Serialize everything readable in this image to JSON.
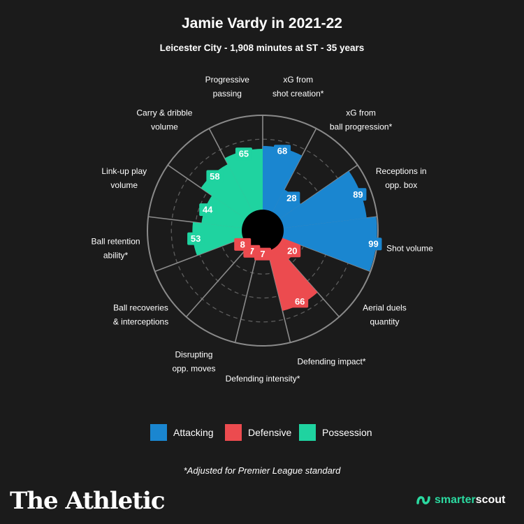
{
  "chart_data": {
    "type": "polar-bar",
    "title": "Jamie Vardy in 2021-22",
    "subtitle": "Leicester City - 1,908 minutes at ST - 35 years",
    "rlim": [
      0,
      100
    ],
    "categories": [
      "xG from shot creation*",
      "xG from ball progression*",
      "Receptions in opp. box",
      "Shot volume",
      "Aerial duels quantity",
      "Defending impact*",
      "Defending intensity*",
      "Disrupting opp. moves",
      "Ball recoveries & interceptions",
      "Ball retention ability*",
      "Link-up play volume",
      "Carry & dribble volume",
      "Progressive passing"
    ],
    "label_lines": [
      [
        "xG from",
        "shot creation*"
      ],
      [
        "xG from",
        "ball progression*"
      ],
      [
        "Receptions in",
        "opp. box"
      ],
      [
        "Shot volume"
      ],
      [
        "Aerial duels",
        "quantity"
      ],
      [
        "Defending impact*"
      ],
      [
        "Defending intensity*"
      ],
      [
        "Disrupting",
        "opp. moves"
      ],
      [
        "Ball recoveries",
        "& interceptions"
      ],
      [
        "Ball retention",
        "ability*"
      ],
      [
        "Link-up play",
        "volume"
      ],
      [
        "Carry & dribble",
        "volume"
      ],
      [
        "Progressive",
        "passing"
      ]
    ],
    "values": [
      68,
      28,
      89,
      99,
      20,
      66,
      7,
      7,
      8,
      53,
      44,
      58,
      65
    ],
    "groups": [
      "Attacking",
      "Attacking",
      "Attacking",
      "Attacking",
      "Defensive",
      "Defensive",
      "Defensive",
      "Defensive",
      "Defensive",
      "Possession",
      "Possession",
      "Possession",
      "Possession"
    ],
    "legend": [
      "Attacking",
      "Defensive",
      "Possession"
    ],
    "colors": {
      "Attacking": "#1a86d0",
      "Defensive": "#ec4b4f",
      "Possession": "#1fd3a0"
    }
  },
  "legend": {
    "attacking": "Attacking",
    "defensive": "Defensive",
    "possession": "Possession"
  },
  "footnote": "*Adjusted for Premier League standard",
  "brand": {
    "athletic": "The Athletic",
    "scout_a": "smarter",
    "scout_b": "scout"
  }
}
